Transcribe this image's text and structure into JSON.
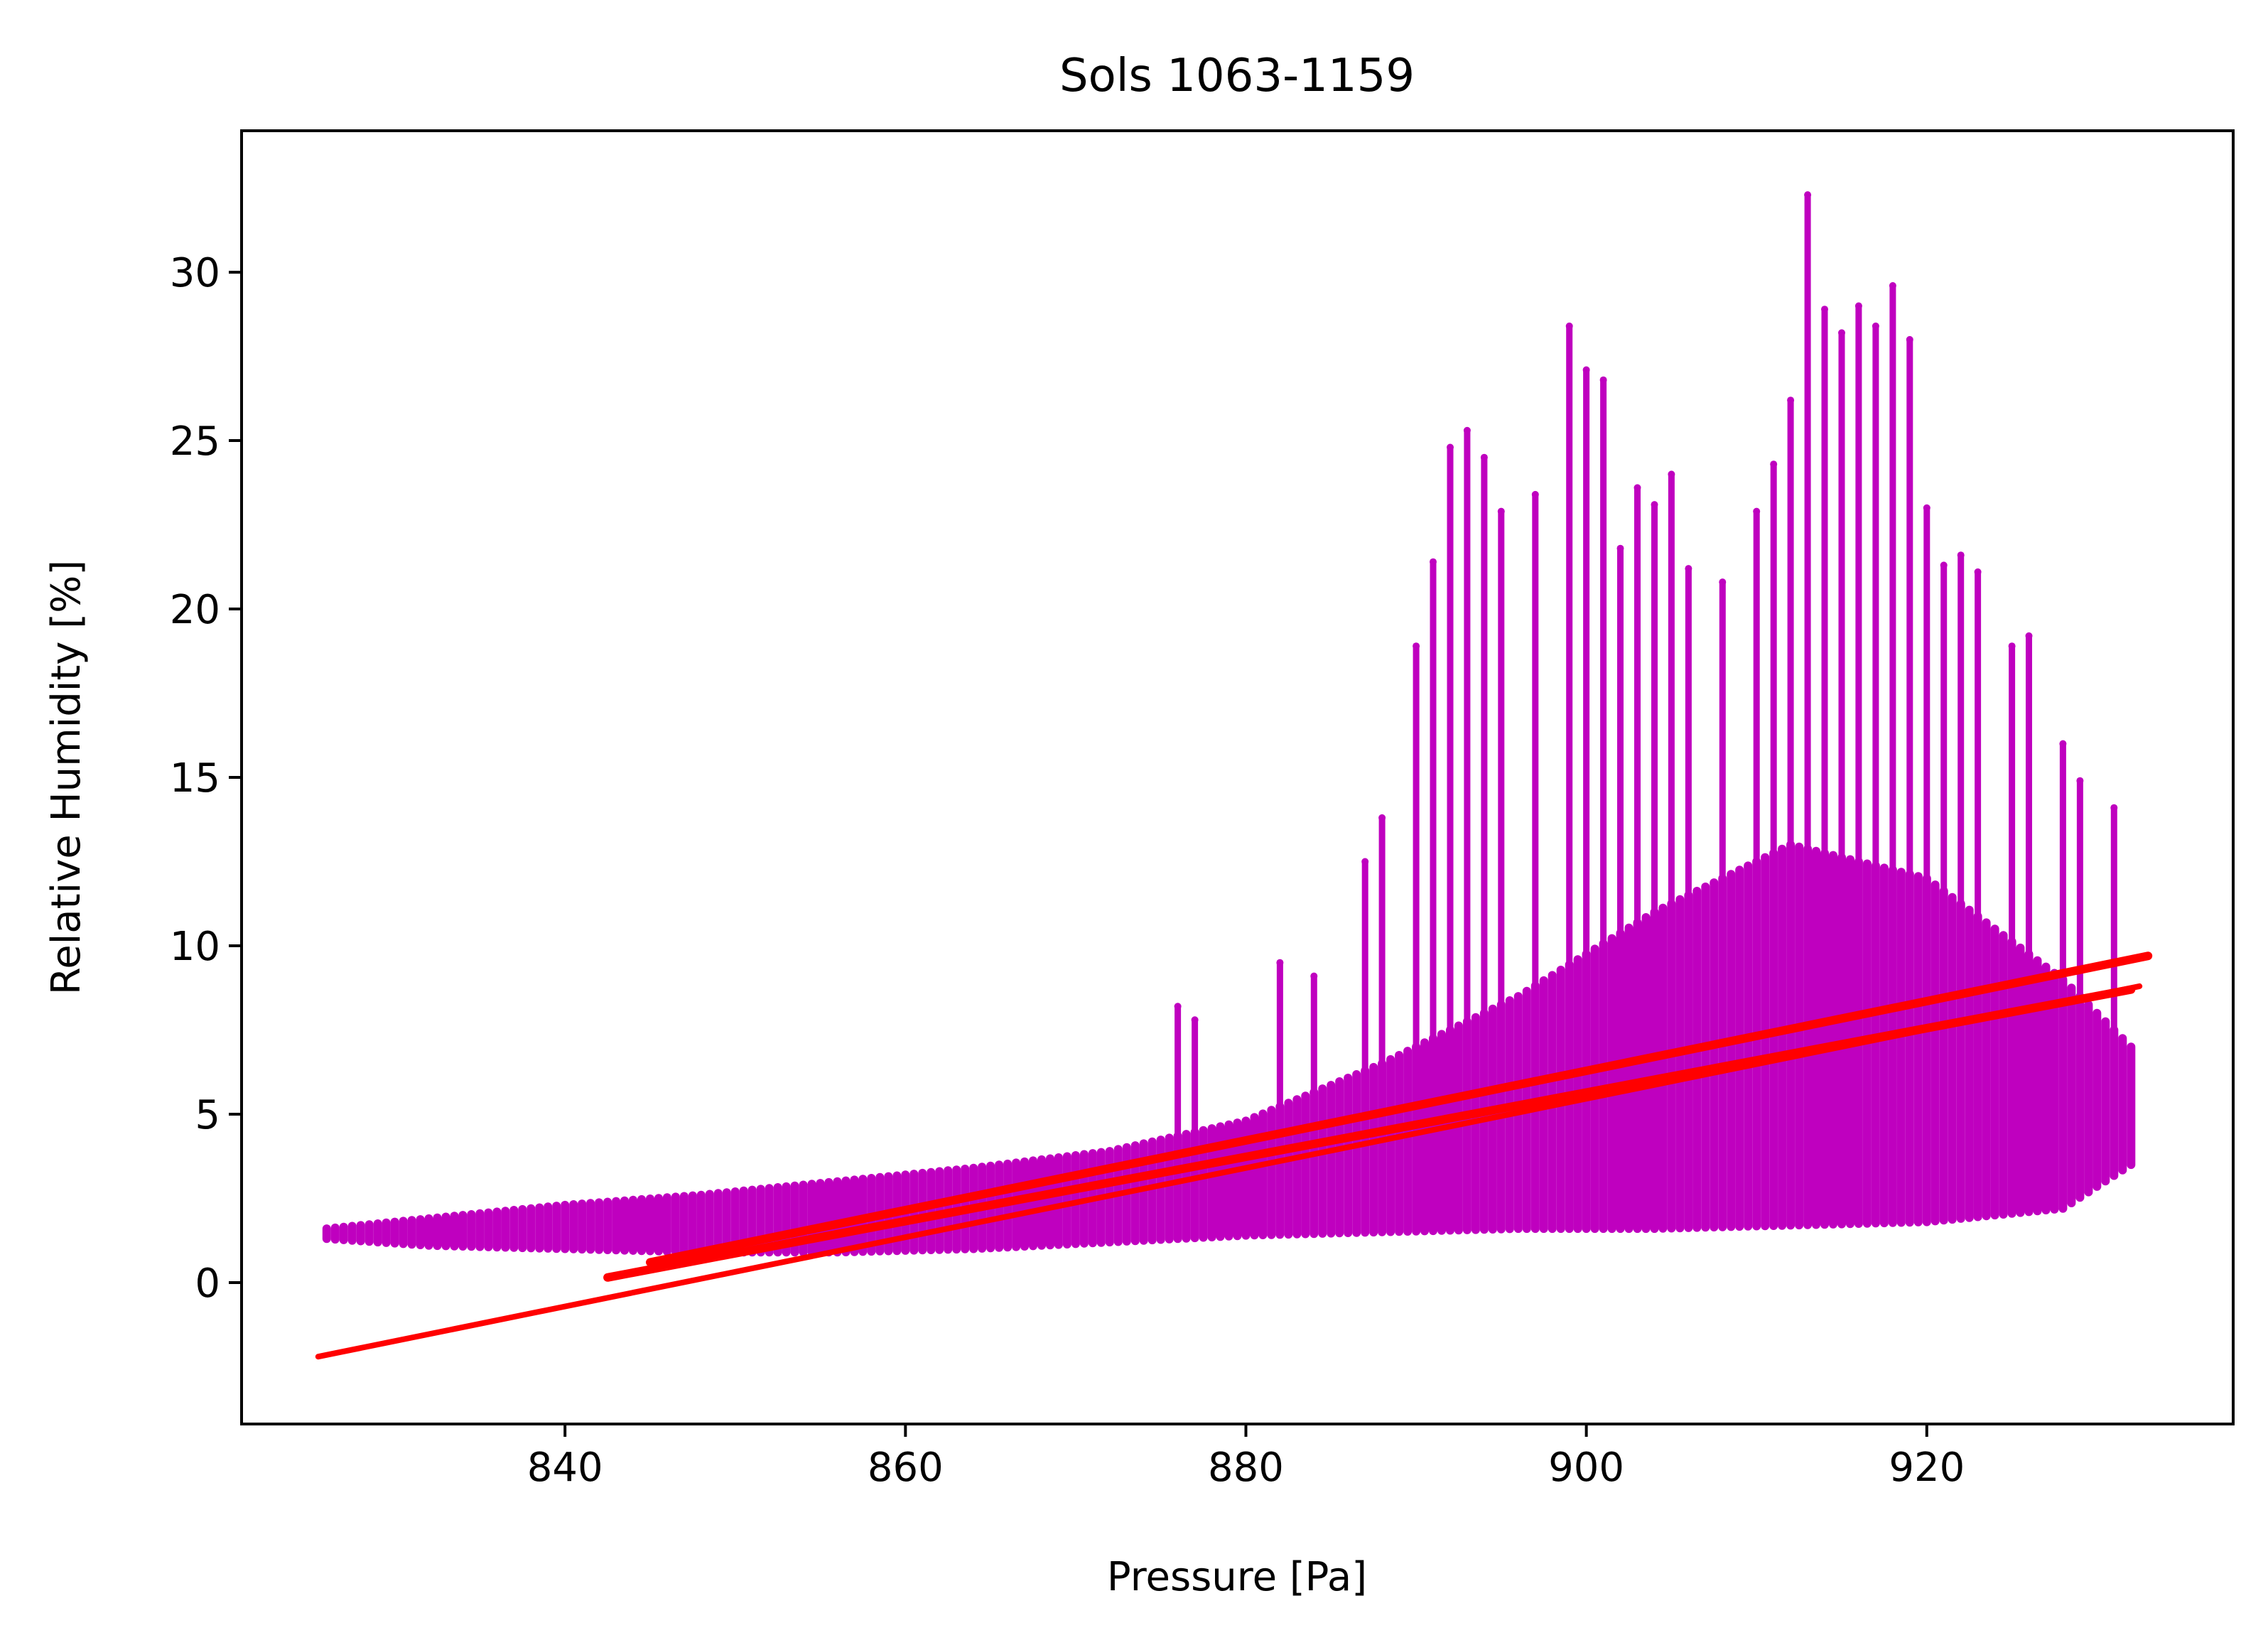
{
  "chart_data": {
    "type": "scatter",
    "title": "Sols 1063-1159",
    "xlabel": "Pressure [Pa]",
    "ylabel": "Relative Humidity [%]",
    "xlim": [
      821,
      938
    ],
    "ylim": [
      -4.2,
      34.2
    ],
    "xticks": [
      840,
      860,
      880,
      900,
      920
    ],
    "yticks": [
      0,
      5,
      10,
      15,
      20,
      25,
      30
    ],
    "grid": false,
    "legend": "none",
    "series": [
      {
        "kind": "scatter",
        "color": "#bf00bf",
        "bands": [
          {
            "x": [
              826,
              832,
              840,
              848,
              856,
              864,
              872,
              880,
              888,
              896,
              904,
              912,
              920,
              928,
              932
            ],
            "lo": [
              1.3,
              1.1,
              1.0,
              0.9,
              0.9,
              1.0,
              1.2,
              1.4,
              1.5,
              1.6,
              1.6,
              1.7,
              1.8,
              2.2,
              3.5
            ],
            "hi": [
              1.6,
              1.9,
              2.3,
              2.6,
              3.0,
              3.4,
              3.9,
              4.8,
              6.5,
              8.5,
              11.0,
              13.0,
              12.0,
              9.0,
              7.0
            ]
          }
        ],
        "spikes": [
          [
            876,
            8.2
          ],
          [
            877,
            7.8
          ],
          [
            882,
            9.5
          ],
          [
            884,
            9.1
          ],
          [
            887,
            12.5
          ],
          [
            888,
            13.8
          ],
          [
            890,
            18.9
          ],
          [
            891,
            21.4
          ],
          [
            892,
            24.8
          ],
          [
            893,
            25.3
          ],
          [
            894,
            24.5
          ],
          [
            895,
            22.9
          ],
          [
            897,
            23.4
          ],
          [
            899,
            28.4
          ],
          [
            900,
            27.1
          ],
          [
            901,
            26.8
          ],
          [
            902,
            21.8
          ],
          [
            903,
            23.6
          ],
          [
            904,
            23.1
          ],
          [
            905,
            24.0
          ],
          [
            906,
            21.2
          ],
          [
            908,
            20.8
          ],
          [
            910,
            22.9
          ],
          [
            911,
            24.3
          ],
          [
            912,
            26.2
          ],
          [
            913,
            32.3
          ],
          [
            914,
            28.9
          ],
          [
            915,
            28.2
          ],
          [
            916,
            29.0
          ],
          [
            917,
            28.4
          ],
          [
            918,
            29.6
          ],
          [
            919,
            28.0
          ],
          [
            920,
            23.0
          ],
          [
            921,
            21.3
          ],
          [
            922,
            21.6
          ],
          [
            923,
            21.1
          ],
          [
            925,
            18.9
          ],
          [
            926,
            19.2
          ],
          [
            928,
            16.0
          ],
          [
            929,
            14.9
          ],
          [
            931,
            14.1
          ]
        ]
      },
      {
        "kind": "line",
        "color": "#ff0000",
        "lines": [
          {
            "x": [
              825.5,
              932.5
            ],
            "y": [
              -2.2,
              8.8
            ]
          },
          {
            "x": [
              842.5,
              932.0
            ],
            "y": [
              0.15,
              8.7
            ]
          },
          {
            "x": [
              845.0,
              933.0
            ],
            "y": [
              0.6,
              9.7
            ]
          }
        ]
      }
    ]
  }
}
